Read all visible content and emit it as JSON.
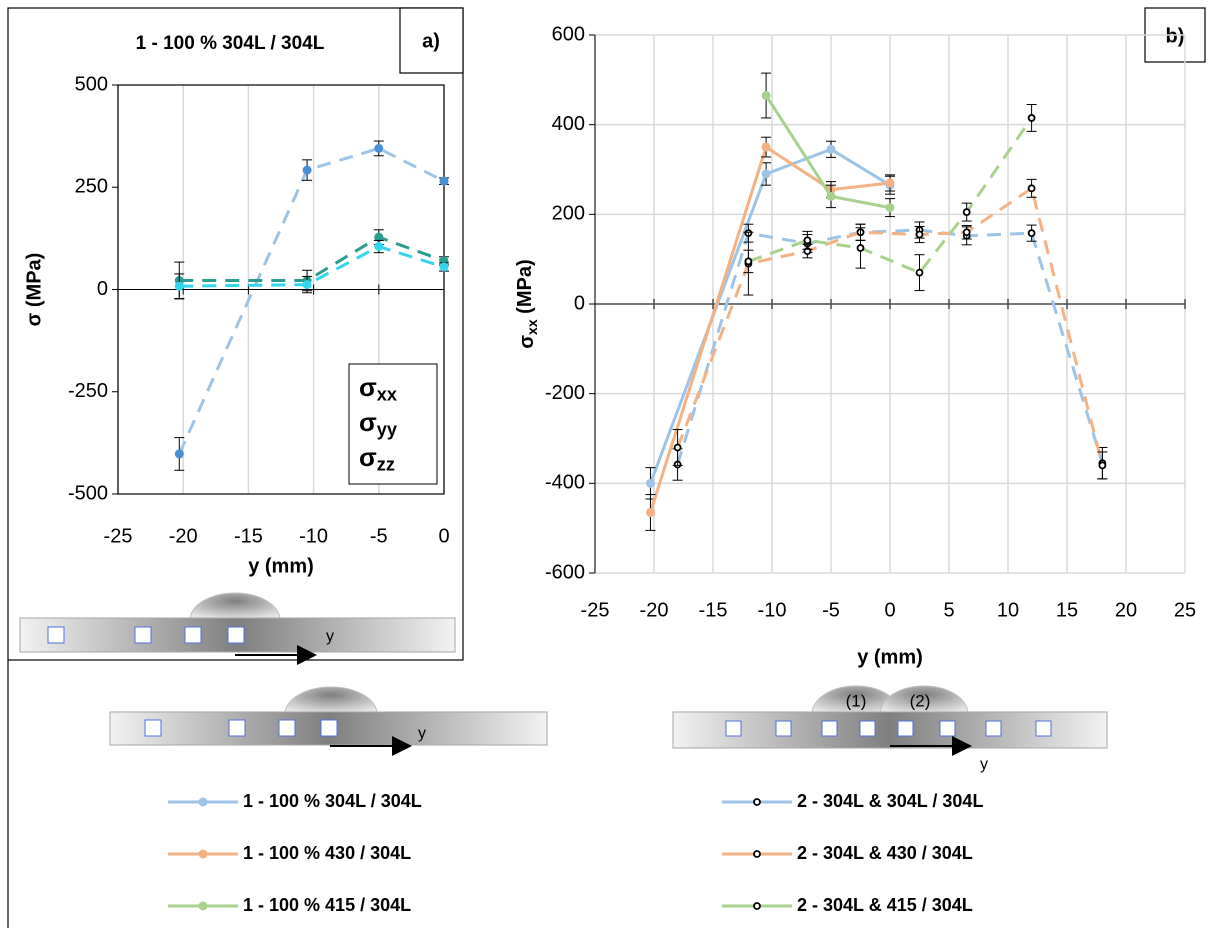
{
  "chart_data": [
    {
      "type": "line",
      "title": "1 - 100 % 304L / 304L",
      "panel_label": "a)",
      "x_label": "y (mm)",
      "y_label": "σ (MPa)",
      "xlim": [
        -25,
        0
      ],
      "xticks": [
        -25,
        -20,
        -15,
        -10,
        -5,
        0
      ],
      "ylim": [
        -500,
        500
      ],
      "yticks": [
        -500,
        -250,
        0,
        250,
        500
      ],
      "grid": "x",
      "frame": true,
      "legend": "lower right",
      "series": [
        {
          "name": "σxx",
          "color": "#9dc3e6",
          "marker_color": "#4a8fd6",
          "dash": true,
          "marker": "filled",
          "x": [
            -20.3,
            -10.5,
            -5,
            0
          ],
          "values": [
            -402,
            292,
            345,
            265
          ],
          "errors": [
            40,
            25,
            18,
            8
          ]
        },
        {
          "name": "σyy",
          "color": "#2a9d8f",
          "marker_color": "#2a9d8f",
          "dash": true,
          "marker": "filled",
          "x": [
            -20.3,
            -10.5,
            -5,
            0
          ],
          "values": [
            22,
            22,
            128,
            70
          ],
          "errors": [
            45,
            25,
            18,
            10
          ]
        },
        {
          "name": "σzz",
          "color": "#33d6ee",
          "marker_color": "#33d6ee",
          "dash": true,
          "marker": "filled",
          "x": [
            -20.3,
            -10.5,
            -5,
            0
          ],
          "values": [
            8,
            12,
            105,
            55
          ],
          "errors": [
            30,
            20,
            15,
            10
          ]
        }
      ]
    },
    {
      "type": "line",
      "panel_label": "b)",
      "x_label": "y (mm)",
      "y_label": "σxx (MPa)",
      "xlim": [
        -25,
        25
      ],
      "xticks": [
        -25,
        -20,
        -15,
        -10,
        -5,
        0,
        5,
        10,
        15,
        20,
        25
      ],
      "ylim": [
        -600,
        600
      ],
      "yticks": [
        -600,
        -400,
        -200,
        0,
        200,
        400,
        600
      ],
      "grid": "both",
      "frame": false,
      "legend": "below",
      "series": [
        {
          "name": "1 - 100 % 304L / 304L",
          "color": "#9dc3e6",
          "marker_color": "#9dc3e6",
          "dash": false,
          "marker": "filled",
          "x": [
            -20.3,
            -10.5,
            -5,
            0
          ],
          "values": [
            -400,
            290,
            345,
            265
          ],
          "errors": [
            35,
            25,
            18,
            20
          ]
        },
        {
          "name": "1 - 100 % 430 / 304L",
          "color": "#f4b183",
          "marker_color": "#f4b183",
          "dash": false,
          "marker": "filled",
          "x": [
            -20.3,
            -10.5,
            -5,
            0
          ],
          "values": [
            -465,
            350,
            255,
            270
          ],
          "errors": [
            40,
            22,
            18,
            18
          ]
        },
        {
          "name": "1 - 100 % 415 / 304L",
          "color": "#a9d18e",
          "marker_color": "#a9d18e",
          "dash": false,
          "marker": "filled",
          "x": [
            -10.5,
            -5,
            0
          ],
          "values": [
            465,
            240,
            215
          ],
          "errors": [
            50,
            25,
            20
          ]
        },
        {
          "name": "2 - 304L & 304L / 304L",
          "color": "#9dc3e6",
          "marker_color": "#000000",
          "dash": true,
          "marker": "open",
          "x": [
            -18,
            -12,
            -7,
            -2.5,
            2.5,
            6.5,
            12,
            18
          ],
          "values": [
            -358,
            158,
            135,
            160,
            165,
            152,
            158,
            -355
          ],
          "errors": [
            35,
            20,
            20,
            18,
            18,
            20,
            18,
            35
          ]
        },
        {
          "name": "2 - 304L & 430 / 304L",
          "color": "#f4b183",
          "marker_color": "#000000",
          "dash": true,
          "marker": "open",
          "x": [
            -18,
            -12,
            -7,
            -2.5,
            2.5,
            6.5,
            12,
            18
          ],
          "values": [
            -320,
            90,
            118,
            160,
            155,
            160,
            258,
            -360
          ],
          "errors": [
            40,
            70,
            15,
            18,
            18,
            15,
            20,
            30
          ]
        },
        {
          "name": "2 - 304L & 415 / 304L",
          "color": "#a9d18e",
          "marker_color": "#000000",
          "dash": true,
          "marker": "open",
          "x": [
            -12,
            -7,
            -2.5,
            2.5,
            6.5,
            12
          ],
          "values": [
            95,
            142,
            125,
            70,
            205,
            415
          ],
          "errors": [
            25,
            20,
            45,
            40,
            20,
            30
          ]
        }
      ]
    }
  ],
  "schematics": {
    "panel_a_axis": "y",
    "single_axis": "y",
    "double_axis": "y",
    "double_passes": [
      "(1)",
      "(2)"
    ]
  }
}
